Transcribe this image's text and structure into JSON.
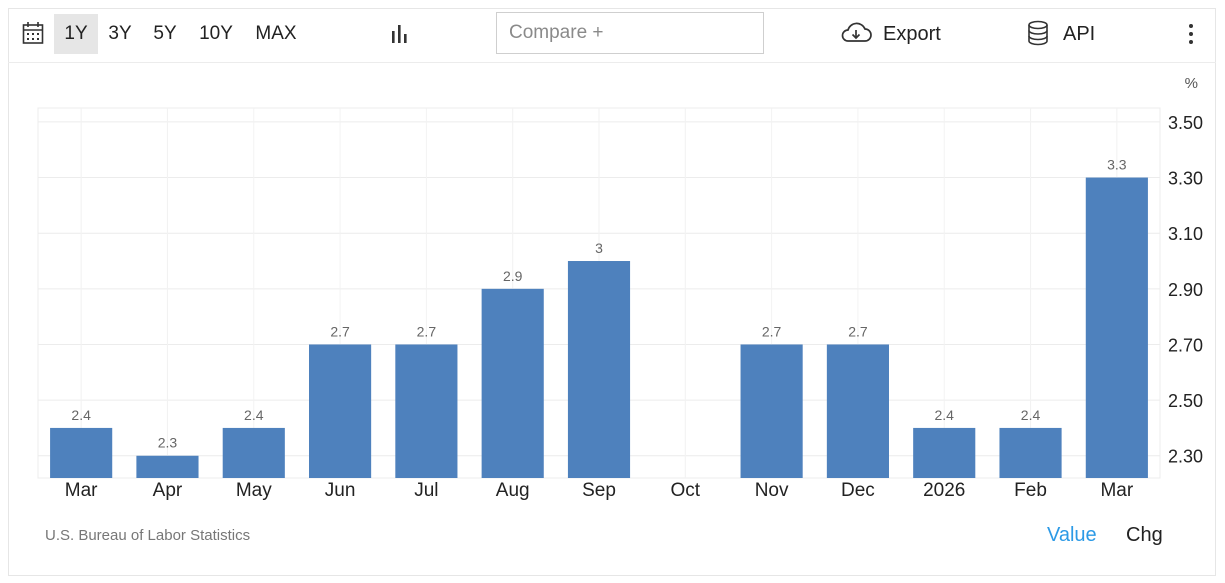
{
  "toolbar": {
    "ranges": [
      "1Y",
      "3Y",
      "5Y",
      "10Y",
      "MAX"
    ],
    "active_range": "1Y",
    "compare_placeholder": "Compare +",
    "export_label": "Export",
    "api_label": "API"
  },
  "chart_data": {
    "type": "bar",
    "unit_label": "%",
    "categories": [
      "Mar",
      "Apr",
      "May",
      "Jun",
      "Jul",
      "Aug",
      "Sep",
      "Oct",
      "Nov",
      "Dec",
      "2026",
      "Feb",
      "Mar"
    ],
    "values": [
      2.4,
      2.3,
      2.4,
      2.7,
      2.7,
      2.9,
      3.0,
      null,
      2.7,
      2.7,
      2.4,
      2.4,
      3.3
    ],
    "data_labels": [
      "2.4",
      "2.3",
      "2.4",
      "2.7",
      "2.7",
      "2.9",
      "3",
      "",
      "2.7",
      "2.7",
      "2.4",
      "2.4",
      "3.3"
    ],
    "y_ticks": [
      "2.30",
      "2.50",
      "2.70",
      "2.90",
      "3.10",
      "3.30",
      "3.50"
    ],
    "ylim": [
      2.22,
      3.55
    ],
    "bar_color": "#4e81bd",
    "grid": true,
    "y_axis_side": "right"
  },
  "footer": {
    "source": "U.S. Bureau of Labor Statistics",
    "value_label": "Value",
    "chg_label": "Chg",
    "value_color": "#2c9ae6"
  }
}
